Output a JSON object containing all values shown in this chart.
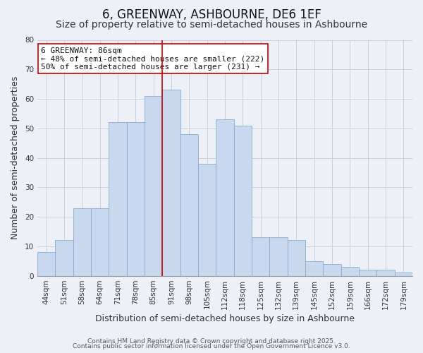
{
  "title": "6, GREENWAY, ASHBOURNE, DE6 1EF",
  "subtitle": "Size of property relative to semi-detached houses in Ashbourne",
  "xlabel": "Distribution of semi-detached houses by size in Ashbourne",
  "ylabel": "Number of semi-detached properties",
  "categories": [
    "44sqm",
    "51sqm",
    "58sqm",
    "64sqm",
    "71sqm",
    "78sqm",
    "85sqm",
    "91sqm",
    "98sqm",
    "105sqm",
    "112sqm",
    "118sqm",
    "125sqm",
    "132sqm",
    "139sqm",
    "145sqm",
    "152sqm",
    "159sqm",
    "166sqm",
    "172sqm",
    "179sqm"
  ],
  "values": [
    8,
    12,
    23,
    23,
    52,
    52,
    61,
    63,
    48,
    38,
    53,
    51,
    13,
    13,
    12,
    5,
    4,
    3,
    2,
    2,
    1
  ],
  "bar_color": "#c8d8ee",
  "bar_edge_color": "#8aaad0",
  "vline_index": 7,
  "vline_color": "#cc0000",
  "ylim": [
    0,
    80
  ],
  "yticks": [
    0,
    10,
    20,
    30,
    40,
    50,
    60,
    70,
    80
  ],
  "annotation_title": "6 GREENWAY: 86sqm",
  "annotation_line1": "← 48% of semi-detached houses are smaller (222)",
  "annotation_line2": "50% of semi-detached houses are larger (231) →",
  "footer1": "Contains HM Land Registry data © Crown copyright and database right 2025.",
  "footer2": "Contains public sector information licensed under the Open Government Licence v3.0.",
  "background_color": "#eef0f8",
  "grid_color": "#c8d0e0",
  "title_fontsize": 12,
  "subtitle_fontsize": 10,
  "xlabel_fontsize": 9,
  "ylabel_fontsize": 9,
  "tick_fontsize": 7.5,
  "annotation_fontsize": 8,
  "footer_fontsize": 6.5
}
